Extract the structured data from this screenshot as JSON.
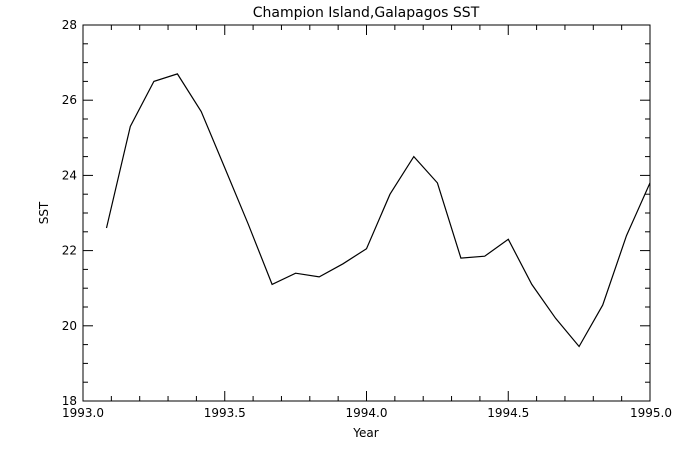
{
  "chart_data": {
    "type": "line",
    "title": "Champion Island,Galapagos SST",
    "xlabel": "Year",
    "ylabel": "SST",
    "xlim": [
      1993.0,
      1995.0
    ],
    "ylim": [
      18,
      28
    ],
    "xticks": [
      1993.0,
      1993.5,
      1994.0,
      1994.5,
      1995.0
    ],
    "xtick_labels": [
      "1993.0",
      "1993.5",
      "1994.0",
      "1994.5",
      "1995.0"
    ],
    "yticks": [
      18,
      20,
      22,
      24,
      26,
      28
    ],
    "ytick_labels": [
      "18",
      "20",
      "22",
      "24",
      "26",
      "28"
    ],
    "grid": false,
    "legend": "none",
    "line_color": "#000000",
    "series": [
      {
        "x": [
          1993.083,
          1993.167,
          1993.25,
          1993.333,
          1993.417,
          1993.5,
          1993.583,
          1993.667,
          1993.75,
          1993.833,
          1993.917,
          1994.0,
          1994.083,
          1994.167,
          1994.25,
          1994.333,
          1994.417,
          1994.5,
          1994.583,
          1994.667,
          1994.75,
          1994.833,
          1994.917,
          1995.0
        ],
        "values": [
          22.6,
          25.3,
          26.5,
          26.7,
          25.7,
          24.2,
          22.7,
          21.1,
          21.4,
          21.3,
          21.65,
          22.05,
          23.5,
          24.5,
          23.8,
          21.8,
          21.85,
          22.3,
          21.1,
          20.2,
          19.45,
          20.55,
          22.4,
          23.8
        ]
      }
    ]
  }
}
